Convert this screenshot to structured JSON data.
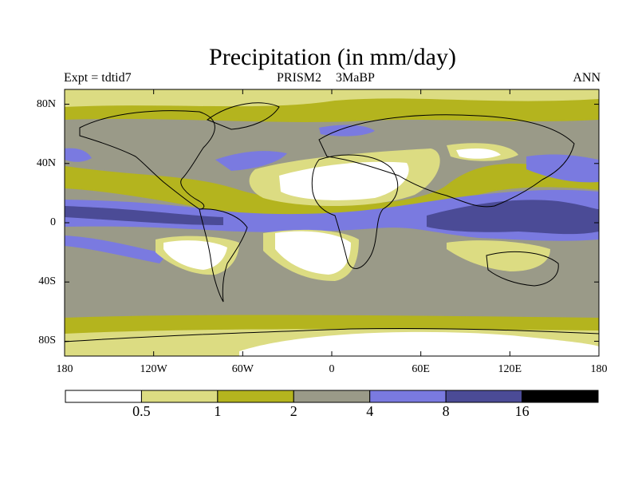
{
  "figure": {
    "title": "Precipitation (in mm/day)",
    "experiment": "Expt = tdtid7",
    "scenario": "PRISM2",
    "period": "3MaBP",
    "season": "ANN"
  },
  "map": {
    "projection": "cylindrical-equidistant",
    "lon_range": [
      -180,
      180
    ],
    "lat_range": [
      -90,
      90
    ],
    "lat_ticks": [
      {
        "value": 80,
        "label": "80N"
      },
      {
        "value": 40,
        "label": "40N"
      },
      {
        "value": 0,
        "label": "0"
      },
      {
        "value": -40,
        "label": "40S"
      },
      {
        "value": -80,
        "label": "80S"
      }
    ],
    "lon_ticks": [
      {
        "value": -180,
        "label": "180"
      },
      {
        "value": -120,
        "label": "120W"
      },
      {
        "value": -60,
        "label": "60W"
      },
      {
        "value": 0,
        "label": "0"
      },
      {
        "value": 60,
        "label": "60E"
      },
      {
        "value": 120,
        "label": "120E"
      },
      {
        "value": 180,
        "label": "180"
      }
    ]
  },
  "colorbar": {
    "levels": [
      "0.5",
      "1",
      "2",
      "4",
      "8",
      "16"
    ],
    "colors": [
      "#ffffff",
      "#dcdc82",
      "#b4b41e",
      "#9a9a88",
      "#7a7ae0",
      "#4b4b96",
      "#000000"
    ]
  },
  "colors": {
    "frame": "#000000",
    "coastline": "#000000",
    "background": "#ffffff"
  }
}
